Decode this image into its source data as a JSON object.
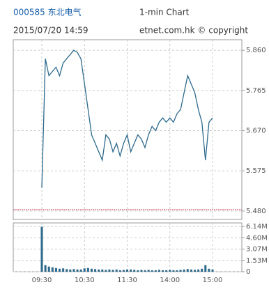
{
  "header": {
    "code": "000585 东北电气",
    "chart_kind": "1-min Chart",
    "timestamp": "2015/07/20 14:59",
    "source": "etnet.com.hk © copyright"
  },
  "chart_data": [
    {
      "type": "line",
      "color": "#2d6a8c",
      "values": [
        5.535,
        5.84,
        5.8,
        5.81,
        5.82,
        5.8,
        5.83,
        5.84,
        5.85,
        5.86,
        5.855,
        5.84,
        5.78,
        5.72,
        5.66,
        5.64,
        5.62,
        5.6,
        5.66,
        5.65,
        5.62,
        5.64,
        5.61,
        5.64,
        5.66,
        5.62,
        5.64,
        5.66,
        5.65,
        5.63,
        5.66,
        5.68,
        5.67,
        5.69,
        5.7,
        5.69,
        5.7,
        5.69,
        5.71,
        5.72,
        5.76,
        5.8,
        5.78,
        5.76,
        5.72,
        5.69,
        5.6,
        5.69,
        5.7
      ],
      "ylim": [
        5.46,
        5.885
      ],
      "yticks": [
        {
          "value": 5.86,
          "label": "5.860"
        },
        {
          "value": 5.765,
          "label": "5.765"
        },
        {
          "value": 5.67,
          "label": "5.670"
        },
        {
          "value": 5.575,
          "label": "5.575"
        },
        {
          "value": 5.48,
          "label": "5.480"
        }
      ],
      "reference_line": 5.483,
      "reference_color": "#c0405a",
      "grid": true
    },
    {
      "type": "bar",
      "color": "#2d6a8c",
      "categories": [
        "09:30",
        null,
        null,
        null,
        null,
        null,
        null,
        null,
        null,
        null,
        null,
        null,
        "10:30",
        null,
        null,
        null,
        null,
        null,
        null,
        null,
        null,
        null,
        null,
        null,
        "11:30",
        null,
        null,
        null,
        null,
        null,
        null,
        null,
        null,
        null,
        null,
        null,
        "14:00",
        null,
        null,
        null,
        null,
        null,
        null,
        null,
        null,
        null,
        null,
        null,
        "15:00"
      ],
      "values": [
        6.1,
        0.9,
        0.7,
        0.6,
        0.5,
        0.4,
        0.45,
        0.35,
        0.3,
        0.35,
        0.3,
        0.3,
        0.45,
        0.5,
        0.4,
        0.35,
        0.3,
        0.3,
        0.25,
        0.3,
        0.25,
        0.3,
        0.2,
        0.25,
        0.3,
        0.3,
        0.25,
        0.2,
        0.25,
        0.2,
        0.25,
        0.2,
        0.2,
        0.25,
        0.2,
        0.2,
        0.25,
        0.2,
        0.2,
        0.25,
        0.3,
        0.35,
        0.3,
        0.25,
        0.3,
        0.4,
        0.9,
        0.4,
        0.3
      ],
      "ylim": [
        0,
        6.62
      ],
      "yticks": [
        {
          "value": 6.14,
          "label": "6.14M"
        },
        {
          "value": 4.6,
          "label": "4.60M"
        },
        {
          "value": 3.07,
          "label": "3.07M"
        },
        {
          "value": 1.53,
          "label": "1.53M"
        },
        0
      ],
      "grid": true
    }
  ]
}
